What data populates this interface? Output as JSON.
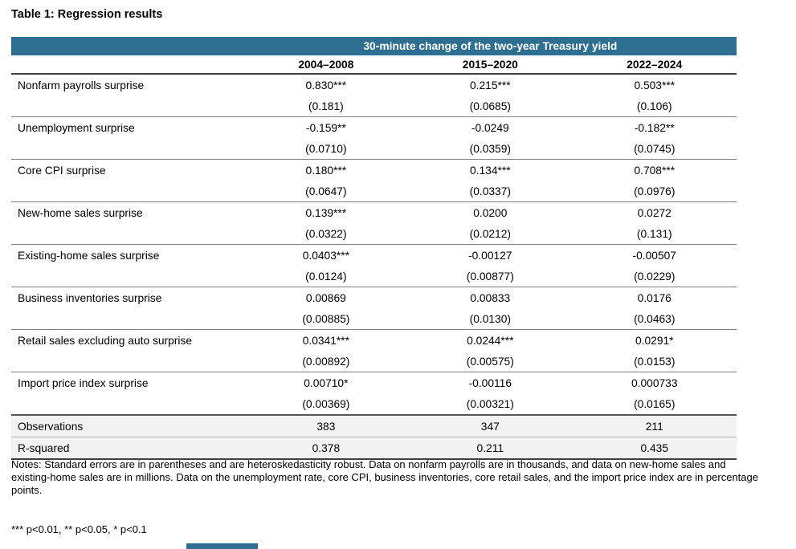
{
  "page": {
    "title": "Table 1: Regression results"
  },
  "colors": {
    "header_bg": "#2e6e91",
    "stat_row_bg": "#f2f2f2"
  },
  "table": {
    "span_header": "30-minute change of the two-year Treasury yield",
    "columns": [
      "2004–2008",
      "2015–2020",
      "2022–2024"
    ],
    "rows": [
      {
        "label": "Nonfarm payrolls surprise",
        "coefs": [
          "0.830***",
          "0.215***",
          "0.503***"
        ],
        "ses": [
          "(0.181)",
          "(0.0685)",
          "(0.106)"
        ]
      },
      {
        "label": "Unemployment surprise",
        "coefs": [
          "-0.159**",
          "-0.0249",
          "-0.182**"
        ],
        "ses": [
          "(0.0710)",
          "(0.0359)",
          "(0.0745)"
        ]
      },
      {
        "label": "Core CPI surprise",
        "coefs": [
          "0.180***",
          "0.134***",
          "0.708***"
        ],
        "ses": [
          "(0.0647)",
          "(0.0337)",
          "(0.0976)"
        ]
      },
      {
        "label": "New-home sales surprise",
        "coefs": [
          "0.139***",
          "0.0200",
          "0.0272"
        ],
        "ses": [
          "(0.0322)",
          "(0.0212)",
          "(0.131)"
        ]
      },
      {
        "label": "Existing-home sales surprise",
        "coefs": [
          "0.0403***",
          "-0.00127",
          "-0.00507"
        ],
        "ses": [
          "(0.0124)",
          "(0.00877)",
          "(0.0229)"
        ]
      },
      {
        "label": "Business inventories surprise",
        "coefs": [
          "0.00869",
          "0.00833",
          "0.0176"
        ],
        "ses": [
          "(0.00885)",
          "(0.0130)",
          "(0.0463)"
        ]
      },
      {
        "label": "Retail sales excluding auto surprise",
        "coefs": [
          "0.0341***",
          "0.0244***",
          "0.0291*"
        ],
        "ses": [
          "(0.00892)",
          "(0.00575)",
          "(0.0153)"
        ]
      },
      {
        "label": "Import price index surprise",
        "coefs": [
          "0.00710*",
          "-0.00116",
          "0.000733"
        ],
        "ses": [
          "(0.00369)",
          "(0.00321)",
          "(0.0165)"
        ]
      }
    ],
    "stats": [
      {
        "label": "Observations",
        "values": [
          "383",
          "347",
          "211"
        ]
      },
      {
        "label": "R-squared",
        "values": [
          "0.378",
          "0.211",
          "0.435"
        ]
      }
    ]
  },
  "notes": "Notes: Standard errors are in parentheses and are heteroskedasticity robust. Data on nonfarm payrolls are in thousands, and data on new-home sales and existing-home sales are in millions. Data on the unemployment rate, core CPI, business inventories, core retail sales, and the import price index are in percentage points.",
  "significance_legend": "*** p<0.01, ** p<0.05, * p<0.1"
}
